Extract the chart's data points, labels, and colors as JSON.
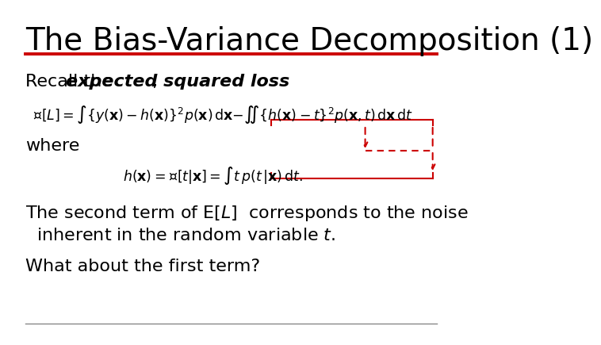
{
  "title": "The Bias-Variance Decomposition (1)",
  "title_color": "#000000",
  "title_fontsize": 28,
  "title_rule_color": "#cc0000",
  "bg_color": "#ffffff",
  "text_color": "#000000",
  "red_color": "#cc0000",
  "body_fontsize": 16,
  "recall_text": "Recall the ",
  "recall_italic": "expected squared loss",
  "recall_comma": " ,",
  "where_text": "where",
  "line5": "What about the first term?",
  "footer_line_color": "#888888"
}
